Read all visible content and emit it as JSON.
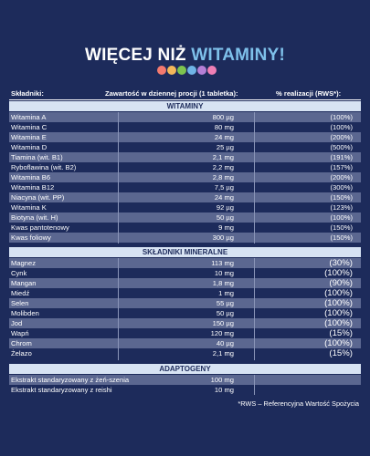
{
  "title": {
    "main": "WIĘCEJ NIŻ",
    "accent": "WITAMINY!"
  },
  "dots": [
    "#f47a6f",
    "#f3b75a",
    "#7ec44f",
    "#6fb4e6",
    "#b57fd6",
    "#ef7fb5"
  ],
  "header": {
    "col1": "Składniki:",
    "col2": "Zawartość w dziennej procji (1 tabletka):",
    "col3": "% realizacji (RWS*):"
  },
  "sections": {
    "vitamins": "WITAMINY",
    "minerals": "SKŁADNIKI  MINERALNE",
    "adaptogens": "ADAPTOGENY"
  },
  "vitamins": [
    {
      "name": "Witamina A",
      "amount": "800 µg",
      "rws": "(100%)"
    },
    {
      "name": "Witamina C",
      "amount": "80 mg",
      "rws": "(100%)"
    },
    {
      "name": "Witamina E",
      "amount": "24 mg",
      "rws": "(200%)"
    },
    {
      "name": "Witamina D",
      "amount": "25 µg",
      "rws": "(500%)"
    },
    {
      "name": "Tiamina (wit. B1)",
      "amount": "2,1 mg",
      "rws": "(191%)"
    },
    {
      "name": "Ryboflawina (wit. B2)",
      "amount": "2,2 mg",
      "rws": "(157%)"
    },
    {
      "name": "Witamina B6",
      "amount": "2,8 mg",
      "rws": "(200%)"
    },
    {
      "name": "Witamina B12",
      "amount": "7,5 µg",
      "rws": "(300%)"
    },
    {
      "name": "Niacyna (wit. PP)",
      "amount": "24 mg",
      "rws": "(150%)"
    },
    {
      "name": "Witamina K",
      "amount": "92 µg",
      "rws": "(123%)"
    },
    {
      "name": "Biotyna (wit. H)",
      "amount": "50 µg",
      "rws": "(100%)"
    },
    {
      "name": "Kwas pantotenowy",
      "amount": "9 mg",
      "rws": "(150%)"
    },
    {
      "name": "Kwas foliowy",
      "amount": "300 µg",
      "rws": "(150%)"
    }
  ],
  "minerals": [
    {
      "name": "Magnez",
      "amount": "113 mg",
      "rws": "(30%)"
    },
    {
      "name": "Cynk",
      "amount": "10 mg",
      "rws": "(100%)"
    },
    {
      "name": "Mangan",
      "amount": "1,8 mg",
      "rws": "(90%)"
    },
    {
      "name": "Miedź",
      "amount": "1 mg",
      "rws": "(100%)"
    },
    {
      "name": "Selen",
      "amount": "55 µg",
      "rws": "(100%)"
    },
    {
      "name": "Molibden",
      "amount": "50 µg",
      "rws": "(100%)"
    },
    {
      "name": "Jod",
      "amount": "150 µg",
      "rws": "(100%)"
    },
    {
      "name": "Wapń",
      "amount": "120 mg",
      "rws": "(15%)"
    },
    {
      "name": "Chrom",
      "amount": "40 µg",
      "rws": "(100%)"
    },
    {
      "name": "Żelazo",
      "amount": "2,1 mg",
      "rws": "(15%)"
    }
  ],
  "adaptogens": [
    {
      "name": "Ekstrakt standaryzowany z żeń-szenia",
      "amount": "100 mg",
      "rws": ""
    },
    {
      "name": "Ekstrakt standaryzowany z reishi",
      "amount": "10 mg",
      "rws": ""
    }
  ],
  "footnote": "*RWS – Referencyjna Wartość Spożycia"
}
